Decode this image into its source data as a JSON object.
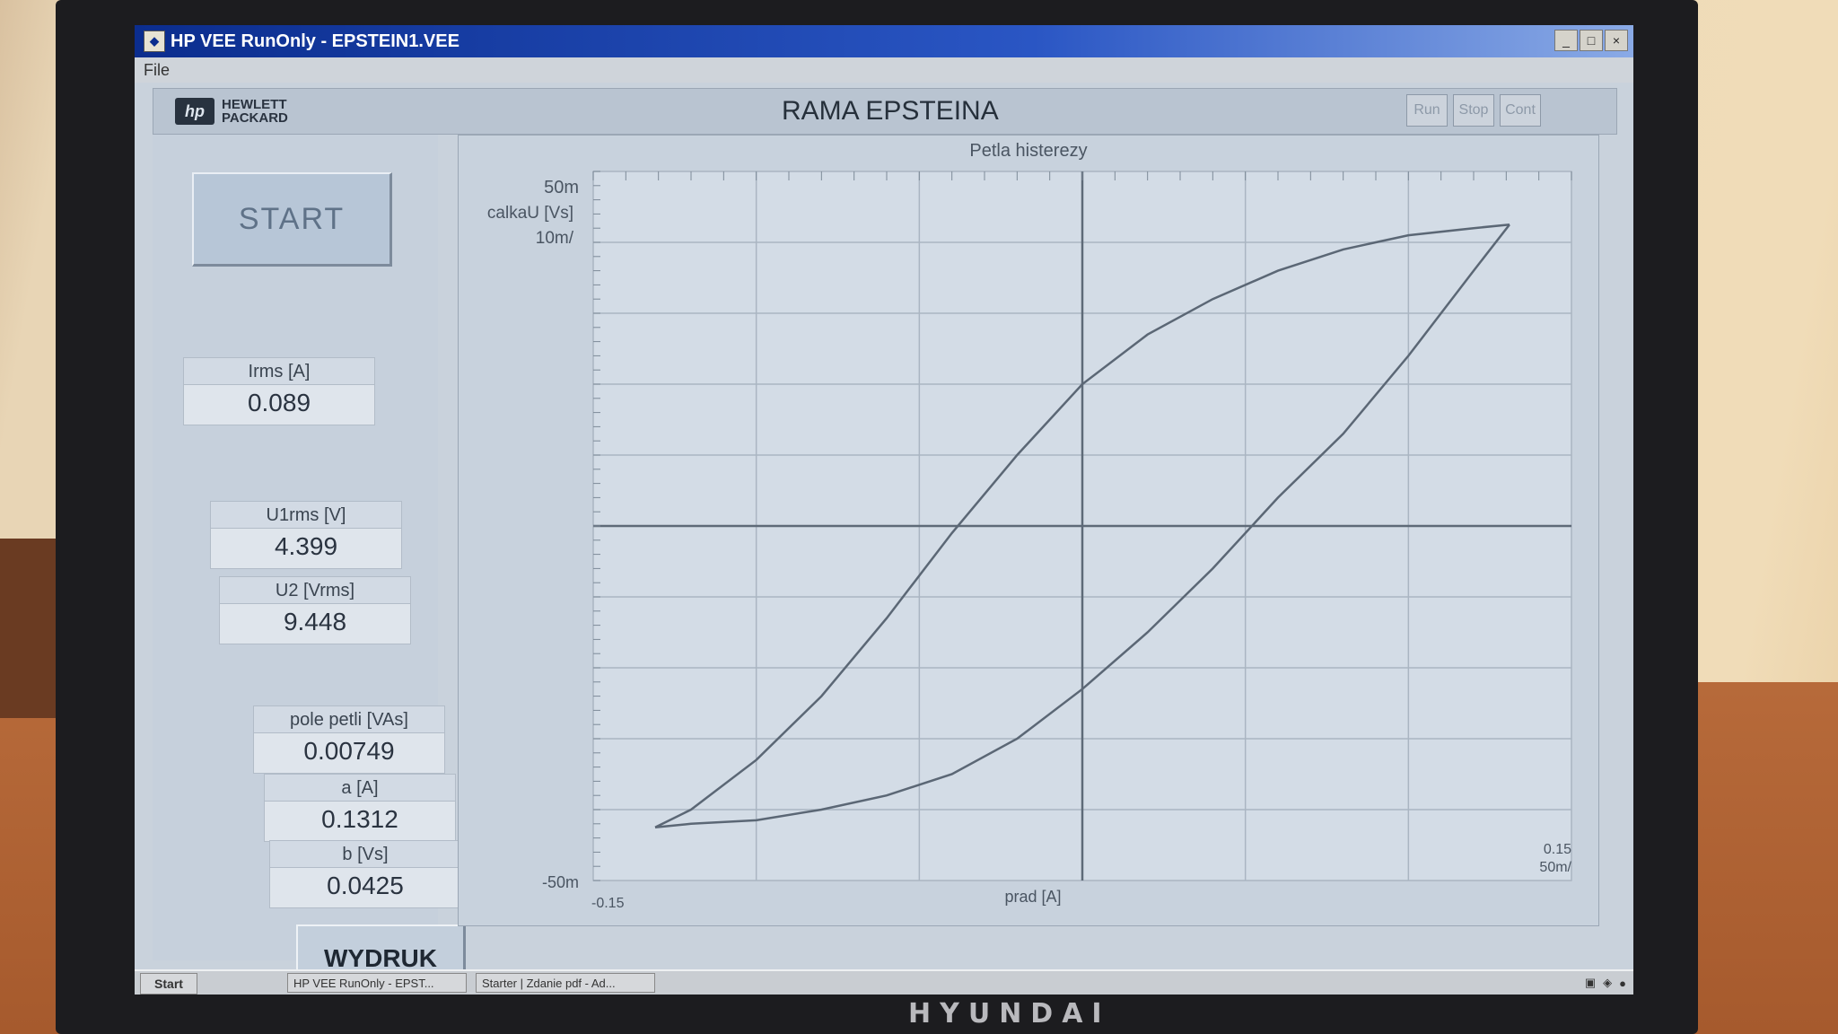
{
  "window": {
    "title": "HP VEE RunOnly - EPSTEIN1.VEE",
    "controls": [
      "_",
      "□",
      "×"
    ]
  },
  "menu": {
    "file": "File"
  },
  "header": {
    "logo_line1": "HEWLETT",
    "logo_line2": "PACKARD",
    "app_title": "RAMA EPSTEINA",
    "run": "Run",
    "stop": "Stop",
    "cont": "Cont"
  },
  "controls": {
    "start_label": "START",
    "print_label": "WYDRUK"
  },
  "readouts": {
    "irms_label": "Irms [A]",
    "irms_value": "0.089",
    "u1_label": "U1rms [V]",
    "u1_value": "4.399",
    "u2_label": "U2 [Vrms]",
    "u2_value": "9.448",
    "pole_label": "pole petli [VAs]",
    "pole_value": "0.00749",
    "a_label": "a [A]",
    "a_value": "0.1312",
    "b_label": "b [Vs]",
    "b_value": "0.0425"
  },
  "plot": {
    "title": "Petla histerezy",
    "y_top": "50m",
    "y_label": "calkaU [Vs]",
    "y_div": "10m/",
    "y_bottom": "-50m",
    "x_left": "-0.15",
    "x_label": "prad [A]",
    "x_right": "0.15",
    "x_div": "50m/"
  },
  "taskbar": {
    "start": "Start",
    "task1": "HP VEE RunOnly - EPST...",
    "task2": "Starter | Zdanie pdf - Ad..."
  },
  "chart_data": {
    "type": "line",
    "title": "Petla histerezy",
    "xlabel": "prad [A]",
    "ylabel": "calkaU [Vs]",
    "xlim": [
      -0.15,
      0.15
    ],
    "ylim": [
      -0.05,
      0.05
    ],
    "grid": true,
    "series": [
      {
        "x": [
          -0.131,
          -0.12,
          -0.1,
          -0.08,
          -0.06,
          -0.04,
          -0.02,
          0.0,
          0.02,
          0.04,
          0.06,
          0.08,
          0.1,
          0.12,
          0.131
        ],
        "y": [
          -0.0425,
          -0.04,
          -0.033,
          -0.024,
          -0.013,
          -0.001,
          0.01,
          0.02,
          0.027,
          0.032,
          0.036,
          0.039,
          0.041,
          0.042,
          0.0425
        ]
      },
      {
        "x": [
          0.131,
          0.12,
          0.1,
          0.08,
          0.06,
          0.04,
          0.02,
          0.0,
          -0.02,
          -0.04,
          -0.06,
          -0.08,
          -0.1,
          -0.12,
          -0.131
        ],
        "y": [
          0.0425,
          0.036,
          0.024,
          0.013,
          0.004,
          -0.006,
          -0.015,
          -0.023,
          -0.03,
          -0.035,
          -0.038,
          -0.04,
          -0.0415,
          -0.042,
          -0.0425
        ]
      }
    ]
  },
  "colors": {
    "titlebar": "#0b2d8e",
    "plot_background": "#c8d2dd",
    "curve": "#5b6775"
  },
  "monitor_brand": "HYUNDAI"
}
